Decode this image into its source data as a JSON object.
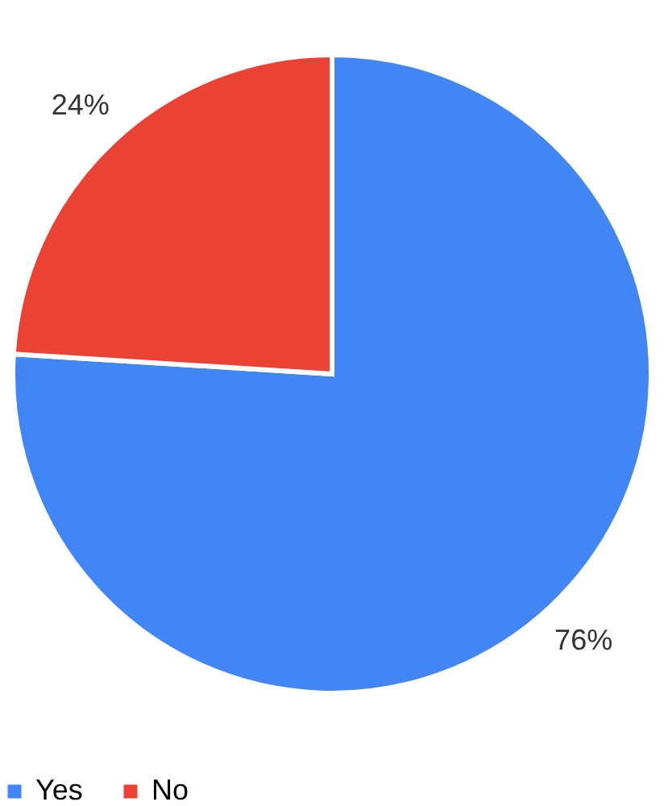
{
  "chart_data": {
    "type": "pie",
    "categories": [
      "Yes",
      "No"
    ],
    "values": [
      76,
      24
    ],
    "colors": [
      "#4285f4",
      "#ea4335"
    ],
    "value_labels": [
      "76%",
      "24%"
    ],
    "legend": "bottom"
  }
}
